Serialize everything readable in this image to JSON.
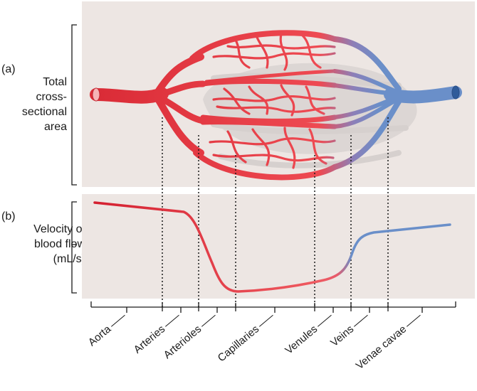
{
  "panel_a": {
    "letter": "(a)",
    "label_lines": [
      "Total",
      "cross-",
      "sectional",
      "area"
    ]
  },
  "panel_b": {
    "letter": "(b)",
    "label_lines": [
      "Velocity of",
      "blood flow",
      "(mL/s)"
    ]
  },
  "segments": [
    "Aorta",
    "Arteries",
    "Arterioles",
    "Capillaries",
    "Venules",
    "Veins",
    "Venae cavae"
  ],
  "colors": {
    "panel_bg": "#ede6e3",
    "arterial": "#e2343c",
    "arterial_light": "#f05a5e",
    "venous": "#6a8fc9",
    "shadow": "#d3cdcb",
    "ink": "#1a1a1a"
  },
  "icons": [
    "artery-tube-icon",
    "vein-tube-icon"
  ]
}
